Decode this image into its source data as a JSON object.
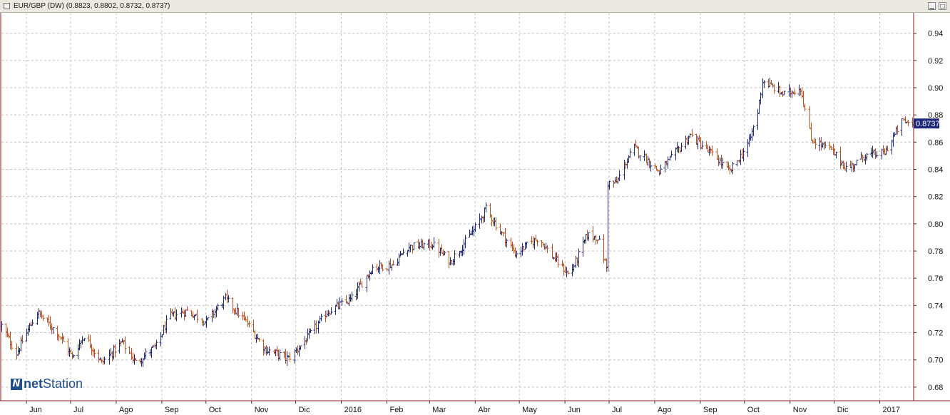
{
  "window": {
    "title": "EUR/GBP (DW) (0.8823, 0.8802, 0.8732, 0.8737)",
    "minimize_glyph": "▁",
    "maximize_glyph": "□"
  },
  "logo": {
    "part1": "net",
    "part2": "Station",
    "mark_glyph": "N"
  },
  "chart_data": {
    "type": "ohlc",
    "instrument": "EUR/GBP",
    "interval": "DW",
    "last_price": 0.8737,
    "last_price_label": "0.8737",
    "ylim": [
      0.67,
      0.955
    ],
    "yticks": [
      0.68,
      0.7,
      0.72,
      0.74,
      0.76,
      0.78,
      0.8,
      0.82,
      0.84,
      0.86,
      0.88,
      0.9,
      0.92,
      0.94
    ],
    "ytick_labels": [
      "0.68",
      "0.70",
      "0.72",
      "0.74",
      "0.76",
      "0.78",
      "0.80",
      "0.82",
      "0.84",
      "0.86",
      "0.88",
      "0.90",
      "0.92",
      "0.94"
    ],
    "xlim": [
      "2015-05-15",
      "2017-01-24"
    ],
    "xticks": [
      {
        "label": "Jun",
        "date": "2015-06-01"
      },
      {
        "label": "Jul",
        "date": "2015-07-01"
      },
      {
        "label": "Ago",
        "date": "2015-08-01"
      },
      {
        "label": "Sep",
        "date": "2015-09-01"
      },
      {
        "label": "Oct",
        "date": "2015-10-01"
      },
      {
        "label": "Nov",
        "date": "2015-11-01"
      },
      {
        "label": "Dic",
        "date": "2015-12-01"
      },
      {
        "label": "2016",
        "date": "2016-01-01"
      },
      {
        "label": "Feb",
        "date": "2016-02-01"
      },
      {
        "label": "Mar",
        "date": "2016-03-01"
      },
      {
        "label": "Abr",
        "date": "2016-04-01"
      },
      {
        "label": "May",
        "date": "2016-05-01"
      },
      {
        "label": "Jun",
        "date": "2016-06-01"
      },
      {
        "label": "Jul",
        "date": "2016-07-01"
      },
      {
        "label": "Ago",
        "date": "2016-08-01"
      },
      {
        "label": "Sep",
        "date": "2016-09-01"
      },
      {
        "label": "Oct",
        "date": "2016-10-01"
      },
      {
        "label": "Nov",
        "date": "2016-11-01"
      },
      {
        "label": "Dic",
        "date": "2016-12-01"
      },
      {
        "label": "2017",
        "date": "2017-01-01"
      }
    ],
    "grid": true,
    "up_color": "#1f2a7a",
    "down_color": "#c0501c",
    "price_path": [
      {
        "date": "2015-05-15",
        "close": 0.725
      },
      {
        "date": "2015-05-25",
        "close": 0.705
      },
      {
        "date": "2015-06-08",
        "close": 0.735
      },
      {
        "date": "2015-06-22",
        "close": 0.72
      },
      {
        "date": "2015-07-02",
        "close": 0.702
      },
      {
        "date": "2015-07-10",
        "close": 0.718
      },
      {
        "date": "2015-07-22",
        "close": 0.698
      },
      {
        "date": "2015-08-05",
        "close": 0.713
      },
      {
        "date": "2015-08-14",
        "close": 0.698
      },
      {
        "date": "2015-08-28",
        "close": 0.71
      },
      {
        "date": "2015-09-06",
        "close": 0.732
      },
      {
        "date": "2015-09-18",
        "close": 0.736
      },
      {
        "date": "2015-10-01",
        "close": 0.728
      },
      {
        "date": "2015-10-14",
        "close": 0.745
      },
      {
        "date": "2015-10-28",
        "close": 0.728
      },
      {
        "date": "2015-11-10",
        "close": 0.708
      },
      {
        "date": "2015-11-26",
        "close": 0.701
      },
      {
        "date": "2015-12-08",
        "close": 0.715
      },
      {
        "date": "2015-12-22",
        "close": 0.735
      },
      {
        "date": "2016-01-08",
        "close": 0.745
      },
      {
        "date": "2016-01-22",
        "close": 0.768
      },
      {
        "date": "2016-02-05",
        "close": 0.77
      },
      {
        "date": "2016-02-15",
        "close": 0.783
      },
      {
        "date": "2016-03-03",
        "close": 0.785
      },
      {
        "date": "2016-03-15",
        "close": 0.772
      },
      {
        "date": "2016-04-01",
        "close": 0.797
      },
      {
        "date": "2016-04-08",
        "close": 0.811
      },
      {
        "date": "2016-04-28",
        "close": 0.778
      },
      {
        "date": "2016-05-14",
        "close": 0.79
      },
      {
        "date": "2016-05-24",
        "close": 0.775
      },
      {
        "date": "2016-06-04",
        "close": 0.762
      },
      {
        "date": "2016-06-16",
        "close": 0.792
      },
      {
        "date": "2016-06-23",
        "close": 0.79
      },
      {
        "date": "2016-06-29",
        "close": 0.768
      },
      {
        "date": "2016-07-06",
        "close": 0.83
      },
      {
        "date": "2016-07-12",
        "close": 0.845
      },
      {
        "date": "2016-07-18",
        "close": 0.856
      },
      {
        "date": "2016-08-04",
        "close": 0.838
      },
      {
        "date": "2016-08-25",
        "close": 0.865
      },
      {
        "date": "2016-09-12",
        "close": 0.848
      },
      {
        "date": "2016-09-21",
        "close": 0.838
      },
      {
        "date": "2016-10-04",
        "close": 0.86
      },
      {
        "date": "2016-10-10",
        "close": 0.882
      },
      {
        "date": "2016-10-13",
        "close": 0.905
      },
      {
        "date": "2016-10-28",
        "close": 0.895
      },
      {
        "date": "2016-11-08",
        "close": 0.9
      },
      {
        "date": "2016-11-15",
        "close": 0.862
      },
      {
        "date": "2016-11-28",
        "close": 0.855
      },
      {
        "date": "2016-12-10",
        "close": 0.84
      },
      {
        "date": "2016-12-21",
        "close": 0.85
      },
      {
        "date": "2017-01-04",
        "close": 0.852
      },
      {
        "date": "2017-01-16",
        "close": 0.875
      },
      {
        "date": "2017-01-24",
        "close": 0.8737
      }
    ],
    "gaps": [
      "2016-06-29"
    ]
  }
}
